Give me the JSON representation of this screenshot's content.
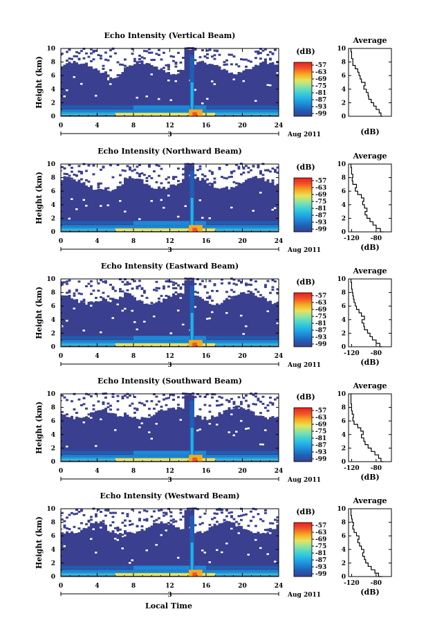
{
  "figure": {
    "xlabel_bottom": "Local Time",
    "date_label": "Aug 2011",
    "day_label": "3",
    "colorbar_unit": "(dB)",
    "colorbar_ticks": [
      "-57",
      "-63",
      "-69",
      "-75",
      "-81",
      "-87",
      "-93",
      "-99"
    ],
    "average_title": "Average",
    "average_xlabel": "(dB)"
  },
  "colors": {
    "colormap": [
      "#3b3f8f",
      "#1f5fb4",
      "#1e88d6",
      "#22b3e6",
      "#45d3d1",
      "#8fe3a0",
      "#e8e35a",
      "#f7a91e",
      "#f0532b",
      "#e8201c"
    ],
    "background": "#ffffff"
  },
  "chart_data": [
    {
      "type": "heatmap",
      "title": "Echo Intensity (Vertical Beam)",
      "xlabel": "",
      "ylabel": "Height (km)",
      "xlim": [
        0,
        24
      ],
      "ylim": [
        0,
        10
      ],
      "xticks": [
        0,
        4,
        8,
        12,
        16,
        20,
        24
      ],
      "yticks": [
        0,
        2,
        4,
        6,
        8,
        10
      ],
      "zlim": [
        -99,
        -57
      ],
      "zunit": "dB"
    },
    {
      "type": "heatmap",
      "title": "Echo Intensity (Northward Beam)",
      "xlabel": "",
      "ylabel": "Height (km)",
      "xlim": [
        0,
        24
      ],
      "ylim": [
        0,
        10
      ],
      "xticks": [
        0,
        4,
        8,
        12,
        16,
        20,
        24
      ],
      "yticks": [
        0,
        2,
        4,
        6,
        8,
        10
      ],
      "zlim": [
        -99,
        -57
      ],
      "zunit": "dB"
    },
    {
      "type": "heatmap",
      "title": "Echo Intensity (Eastward Beam)",
      "xlabel": "",
      "ylabel": "Height (km)",
      "xlim": [
        0,
        24
      ],
      "ylim": [
        0,
        10
      ],
      "xticks": [
        0,
        4,
        8,
        12,
        16,
        20,
        24
      ],
      "yticks": [
        0,
        2,
        4,
        6,
        8,
        10
      ],
      "zlim": [
        -99,
        -57
      ],
      "zunit": "dB"
    },
    {
      "type": "heatmap",
      "title": "Echo Intensity (Southward Beam)",
      "xlabel": "",
      "ylabel": "Height (km)",
      "xlim": [
        0,
        24
      ],
      "ylim": [
        0,
        10
      ],
      "xticks": [
        0,
        4,
        8,
        12,
        16,
        20,
        24
      ],
      "yticks": [
        0,
        2,
        4,
        6,
        8,
        10
      ],
      "zlim": [
        -99,
        -57
      ],
      "zunit": "dB"
    },
    {
      "type": "heatmap",
      "title": "Echo Intensity (Westward Beam)",
      "xlabel": "Local Time",
      "ylabel": "Height (km)",
      "xlim": [
        0,
        24
      ],
      "ylim": [
        0,
        10
      ],
      "xticks": [
        0,
        4,
        8,
        12,
        16,
        20,
        24
      ],
      "yticks": [
        0,
        2,
        4,
        6,
        8,
        10
      ],
      "zlim": [
        -99,
        -57
      ],
      "zunit": "dB"
    },
    {
      "type": "line",
      "title": "Average",
      "xlabel": "(dB)",
      "ylabel": "",
      "xlim": [
        -125,
        -55
      ],
      "ylim": [
        0,
        10
      ],
      "xticks": [],
      "yticks": [
        0,
        2,
        4,
        6,
        8,
        10
      ],
      "x": [
        -70,
        -72,
        -75,
        -80,
        -84,
        -88,
        -92,
        -93,
        -96,
        -100,
        -98,
        -104,
        -106,
        -108,
        -110,
        -114,
        -118,
        -118,
        -120,
        -120,
        -121
      ],
      "y": [
        0,
        0.5,
        1.0,
        1.5,
        2.0,
        2.5,
        3.0,
        3.5,
        4.0,
        4.5,
        5.0,
        5.5,
        6.0,
        6.5,
        7.0,
        7.5,
        8.0,
        8.5,
        9.0,
        9.5,
        10
      ]
    },
    {
      "type": "line",
      "title": "Average",
      "xlabel": "(dB)",
      "ylabel": "",
      "xlim": [
        -125,
        -55
      ],
      "ylim": [
        0,
        10
      ],
      "xticks": [
        -120,
        -80
      ],
      "yticks": [
        0,
        2,
        4,
        6,
        8,
        10
      ],
      "x": [
        -68,
        -73,
        -80,
        -85,
        -90,
        -95,
        -98,
        -95,
        -99,
        -102,
        -100,
        -104,
        -110,
        -114,
        -112,
        -118,
        -119,
        -118,
        -120,
        -120,
        -121
      ],
      "y": [
        0,
        0.5,
        1.0,
        1.5,
        2.0,
        2.5,
        3.0,
        3.5,
        4.0,
        4.5,
        5.0,
        5.5,
        6.0,
        6.5,
        7.0,
        7.5,
        8.0,
        8.5,
        9.0,
        9.5,
        10
      ]
    },
    {
      "type": "line",
      "title": "Average",
      "xlabel": "(dB)",
      "ylabel": "",
      "xlim": [
        -125,
        -55
      ],
      "ylim": [
        0,
        10
      ],
      "xticks": [
        -120,
        -80
      ],
      "yticks": [
        0,
        2,
        4,
        6,
        8,
        10
      ],
      "x": [
        -70,
        -74,
        -80,
        -86,
        -90,
        -94,
        -99,
        -100,
        -103,
        -99,
        -104,
        -108,
        -112,
        -114,
        -116,
        -117,
        -118,
        -119,
        -120,
        -120,
        -121
      ],
      "y": [
        0,
        0.5,
        1.0,
        1.5,
        2.0,
        2.5,
        3.0,
        3.5,
        4.0,
        4.5,
        5.0,
        5.5,
        6.0,
        6.5,
        7.0,
        7.5,
        8.0,
        8.5,
        9.0,
        9.5,
        10
      ]
    },
    {
      "type": "line",
      "title": "Average",
      "xlabel": "(dB)",
      "ylabel": "",
      "xlim": [
        -125,
        -55
      ],
      "ylim": [
        0,
        10
      ],
      "xticks": [
        -120,
        -80
      ],
      "yticks": [
        0,
        2,
        4,
        6,
        8,
        10
      ],
      "x": [
        -68,
        -72,
        -76,
        -82,
        -88,
        -93,
        -98,
        -100,
        -104,
        -101,
        -105,
        -110,
        -116,
        -118,
        -117,
        -119,
        -120,
        -120,
        -121,
        -121,
        -121
      ],
      "y": [
        0,
        0.5,
        1.0,
        1.5,
        2.0,
        2.5,
        3.0,
        3.5,
        4.0,
        4.5,
        5.0,
        5.5,
        6.0,
        6.5,
        7.0,
        7.5,
        8.0,
        8.5,
        9.0,
        9.5,
        10
      ]
    },
    {
      "type": "line",
      "title": "Average",
      "xlabel": "(dB)",
      "ylabel": "",
      "xlim": [
        -125,
        -55
      ],
      "ylim": [
        0,
        10
      ],
      "xticks": [
        -120,
        -80
      ],
      "yticks": [
        0,
        2,
        4,
        6,
        8,
        10
      ],
      "x": [
        -70,
        -76,
        -82,
        -88,
        -93,
        -97,
        -99,
        -102,
        -100,
        -104,
        -107,
        -110,
        -108,
        -112,
        -116,
        -118,
        -117,
        -119,
        -120,
        -121,
        -121
      ],
      "y": [
        0,
        0.5,
        1.0,
        1.5,
        2.0,
        2.5,
        3.0,
        3.5,
        4.0,
        4.5,
        5.0,
        5.5,
        6.0,
        6.5,
        7.0,
        7.5,
        8.0,
        8.5,
        9.0,
        9.5,
        10
      ]
    }
  ]
}
